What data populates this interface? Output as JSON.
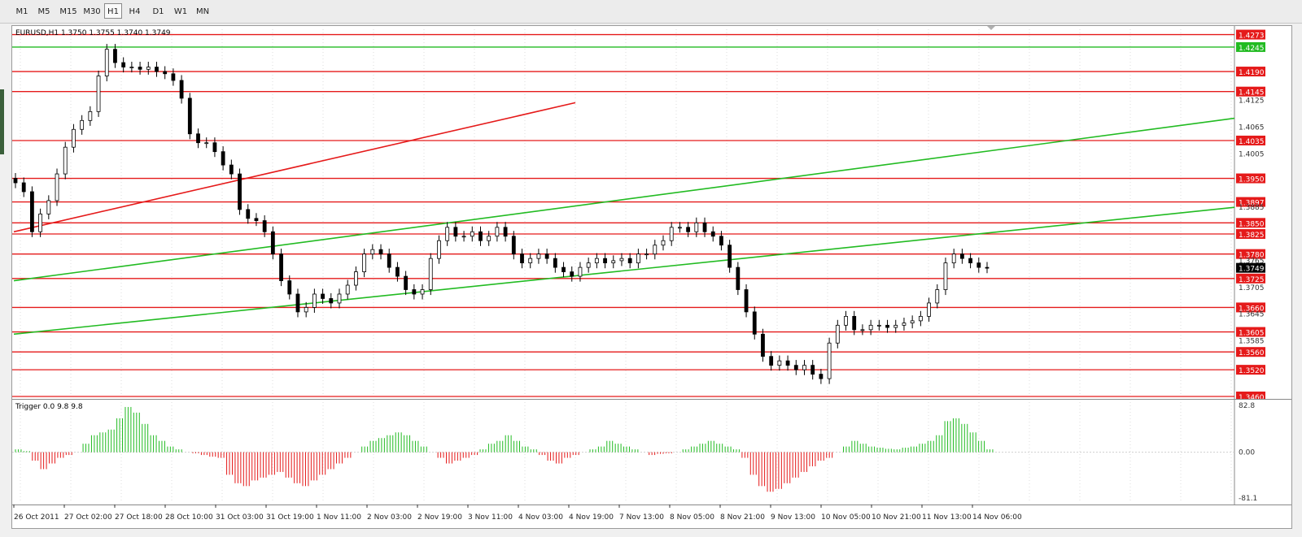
{
  "toolbar": {
    "timeframes": [
      "M1",
      "M5",
      "M15",
      "M30",
      "H1",
      "H4",
      "D1",
      "W1",
      "MN"
    ],
    "active": "H1"
  },
  "chart_data": [
    {
      "type": "candlestick",
      "title": "EURUSD,H1  1.3750 1.3755 1.3740 1.3749",
      "ylim": [
        1.346,
        1.4285
      ],
      "price_scale_labels": [
        "1.4125",
        "1.4065",
        "1.4005",
        "1.3885",
        "1.3765",
        "1.3705",
        "1.3645",
        "1.3585"
      ],
      "current_price": "1.3749",
      "horizontal_levels": [
        {
          "price": "1.4273",
          "color": "#e51a1a"
        },
        {
          "price": "1.4245",
          "color": "#22bb22"
        },
        {
          "price": "1.4190",
          "color": "#e51a1a"
        },
        {
          "price": "1.4145",
          "color": "#e51a1a"
        },
        {
          "price": "1.4035",
          "color": "#e51a1a"
        },
        {
          "price": "1.3950",
          "color": "#e51a1a"
        },
        {
          "price": "1.3897",
          "color": "#e51a1a"
        },
        {
          "price": "1.3850",
          "color": "#e51a1a"
        },
        {
          "price": "1.3825",
          "color": "#e51a1a"
        },
        {
          "price": "1.3780",
          "color": "#e51a1a"
        },
        {
          "price": "1.3725",
          "color": "#e51a1a"
        },
        {
          "price": "1.3660",
          "color": "#e51a1a"
        },
        {
          "price": "1.3605",
          "color": "#e51a1a"
        },
        {
          "price": "1.3560",
          "color": "#e51a1a"
        },
        {
          "price": "1.3520",
          "color": "#e51a1a"
        },
        {
          "price": "1.3460",
          "color": "#e51a1a"
        }
      ],
      "x_labels": [
        "26 Oct 2011",
        "27 Oct 02:00",
        "27 Oct 18:00",
        "28 Oct 10:00",
        "31 Oct 03:00",
        "31 Oct 19:00",
        "1 Nov 11:00",
        "2 Nov 03:00",
        "2 Nov 19:00",
        "3 Nov 11:00",
        "4 Nov 03:00",
        "4 Nov 19:00",
        "7 Nov 13:00",
        "8 Nov 05:00",
        "8 Nov 21:00",
        "9 Nov 13:00",
        "10 Nov 05:00",
        "10 Nov 21:00",
        "11 Nov 13:00",
        "14 Nov 06:00"
      ],
      "closes": [
        1.394,
        1.392,
        1.383,
        1.387,
        1.39,
        1.396,
        1.402,
        1.406,
        1.408,
        1.41,
        1.418,
        1.424,
        1.421,
        1.42,
        1.42,
        1.4195,
        1.42,
        1.419,
        1.4185,
        1.417,
        1.413,
        1.405,
        1.403,
        1.403,
        1.401,
        1.398,
        1.396,
        1.388,
        1.386,
        1.3855,
        1.383,
        1.378,
        1.372,
        1.369,
        1.365,
        1.366,
        1.369,
        1.368,
        1.367,
        1.369,
        1.371,
        1.374,
        1.378,
        1.379,
        1.378,
        1.375,
        1.373,
        1.37,
        1.369,
        1.37,
        1.377,
        1.381,
        1.384,
        1.382,
        1.382,
        1.383,
        1.381,
        1.382,
        1.384,
        1.382,
        1.378,
        1.376,
        1.377,
        1.378,
        1.377,
        1.375,
        1.374,
        1.373,
        1.375,
        1.376,
        1.377,
        1.376,
        1.3765,
        1.377,
        1.376,
        1.378,
        1.378,
        1.38,
        1.381,
        1.384,
        1.384,
        1.383,
        1.385,
        1.383,
        1.382,
        1.38,
        1.375,
        1.37,
        1.365,
        1.36,
        1.355,
        1.353,
        1.354,
        1.353,
        1.352,
        1.353,
        1.351,
        1.35,
        1.358,
        1.362,
        1.364,
        1.361,
        1.361,
        1.362,
        1.362,
        1.3615,
        1.362,
        1.3625,
        1.363,
        1.364,
        1.367,
        1.37,
        1.376,
        1.378,
        1.377,
        1.376,
        1.375,
        1.3749
      ],
      "trendlines": [
        {
          "color": "#e51a1a",
          "points": [
            [
              "26 Oct 2011",
              1.383
            ],
            [
              "4 Nov 19:00",
              1.412
            ]
          ]
        },
        {
          "color": "#22bb22",
          "points": [
            [
              "26 Oct 2011",
              1.372
            ],
            [
              "14 Nov 06:00",
              1.4085
            ]
          ]
        },
        {
          "color": "#22bb22",
          "points": [
            [
              "26 Oct 2011",
              1.36
            ],
            [
              "14 Nov 06:00",
              1.3885
            ]
          ]
        }
      ]
    },
    {
      "type": "histogram",
      "title": "Trigger 0.0 9.8 9.8",
      "ylim": [
        -81.1,
        82.8
      ],
      "y_labels": [
        "82.8",
        "0.00",
        "-81.1"
      ],
      "positive_color": "#22bb22",
      "negative_color": "#e51a1a",
      "values": [
        5,
        2,
        -15,
        -30,
        -20,
        -10,
        -5,
        0,
        15,
        30,
        35,
        40,
        60,
        80,
        70,
        50,
        30,
        20,
        10,
        5,
        0,
        -2,
        -5,
        -8,
        -10,
        -40,
        -55,
        -60,
        -50,
        -45,
        -40,
        -35,
        -45,
        -55,
        -60,
        -50,
        -40,
        -30,
        -20,
        -10,
        0,
        10,
        20,
        25,
        30,
        35,
        30,
        20,
        10,
        0,
        -10,
        -20,
        -15,
        -10,
        -5,
        5,
        15,
        20,
        30,
        20,
        10,
        5,
        -5,
        -15,
        -20,
        -10,
        -5,
        0,
        5,
        10,
        20,
        15,
        10,
        5,
        0,
        -5,
        -3,
        -2,
        0,
        5,
        10,
        15,
        20,
        15,
        10,
        5,
        -10,
        -40,
        -60,
        -70,
        -65,
        -55,
        -45,
        -35,
        -25,
        -15,
        -10,
        0,
        10,
        20,
        15,
        10,
        8,
        6,
        5,
        8,
        10,
        15,
        20,
        30,
        55,
        60,
        50,
        35,
        20,
        5
      ]
    }
  ]
}
